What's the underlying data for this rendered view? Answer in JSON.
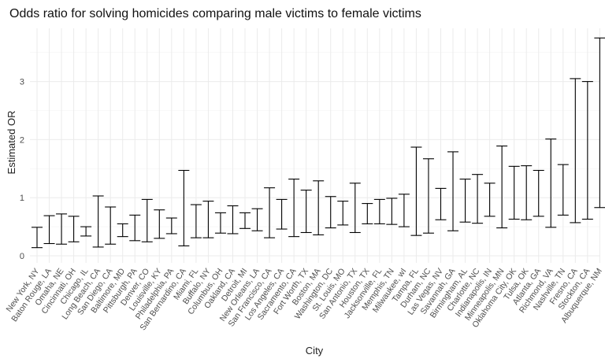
{
  "chart_data": {
    "type": "errorbar",
    "title": "Odds ratio for solving homicides comparing male victims to female victims",
    "xlabel": "City",
    "ylabel": "Estimated OR",
    "ylim": [
      -0.1,
      3.8
    ],
    "yticks": [
      0,
      1,
      2,
      3
    ],
    "grid": true,
    "series": [
      {
        "values": [
          {
            "city": "New York, NY",
            "lower": 0.14,
            "upper": 0.49
          },
          {
            "city": "Baton Rouge, LA",
            "lower": 0.21,
            "upper": 0.69
          },
          {
            "city": "Omaha, NE",
            "lower": 0.2,
            "upper": 0.72
          },
          {
            "city": "Cincinnati, OH",
            "lower": 0.24,
            "upper": 0.68
          },
          {
            "city": "Chicago, IL",
            "lower": 0.34,
            "upper": 0.5
          },
          {
            "city": "Long Beach, CA",
            "lower": 0.15,
            "upper": 1.03
          },
          {
            "city": "San Diego, CA",
            "lower": 0.2,
            "upper": 0.84
          },
          {
            "city": "Baltimore, MD",
            "lower": 0.33,
            "upper": 0.55
          },
          {
            "city": "Pittsburgh, PA",
            "lower": 0.26,
            "upper": 0.7
          },
          {
            "city": "Denver, CO",
            "lower": 0.24,
            "upper": 0.97
          },
          {
            "city": "Louisville, KY",
            "lower": 0.3,
            "upper": 0.79
          },
          {
            "city": "Philadelphia, PA",
            "lower": 0.38,
            "upper": 0.65
          },
          {
            "city": "San Bernardino, CA",
            "lower": 0.17,
            "upper": 1.47
          },
          {
            "city": "Miami, FL",
            "lower": 0.31,
            "upper": 0.88
          },
          {
            "city": "Buffalo, NY",
            "lower": 0.31,
            "upper": 0.94
          },
          {
            "city": "Columbus, OH",
            "lower": 0.39,
            "upper": 0.74
          },
          {
            "city": "Oakland, CA",
            "lower": 0.38,
            "upper": 0.86
          },
          {
            "city": "Detroit, MI",
            "lower": 0.47,
            "upper": 0.74
          },
          {
            "city": "New Orleans, LA",
            "lower": 0.43,
            "upper": 0.81
          },
          {
            "city": "San Francisco, CA",
            "lower": 0.31,
            "upper": 1.17
          },
          {
            "city": "Los Angeles, CA",
            "lower": 0.46,
            "upper": 0.97
          },
          {
            "city": "Sacramento, CA",
            "lower": 0.33,
            "upper": 1.32
          },
          {
            "city": "Fort Worth, TX",
            "lower": 0.4,
            "upper": 1.13
          },
          {
            "city": "Boston, MA",
            "lower": 0.36,
            "upper": 1.29
          },
          {
            "city": "Washington, DC",
            "lower": 0.48,
            "upper": 1.02
          },
          {
            "city": "St. Louis, MO",
            "lower": 0.53,
            "upper": 0.94
          },
          {
            "city": "San Antonio, TX",
            "lower": 0.4,
            "upper": 1.25
          },
          {
            "city": "Houston, TX",
            "lower": 0.55,
            "upper": 0.9
          },
          {
            "city": "Jacksonville, FL",
            "lower": 0.55,
            "upper": 0.97
          },
          {
            "city": "Memphis, TN",
            "lower": 0.54,
            "upper": 0.99
          },
          {
            "city": "Milwaukee, wI",
            "lower": 0.5,
            "upper": 1.06
          },
          {
            "city": "Tampa, FL",
            "lower": 0.35,
            "upper": 1.87
          },
          {
            "city": "Durham, NC",
            "lower": 0.39,
            "upper": 1.67
          },
          {
            "city": "Las Vegas, NV",
            "lower": 0.62,
            "upper": 1.16
          },
          {
            "city": "Savannah, GA",
            "lower": 0.43,
            "upper": 1.79
          },
          {
            "city": "Birmingham, AL",
            "lower": 0.58,
            "upper": 1.32
          },
          {
            "city": "Charlotte, NC",
            "lower": 0.56,
            "upper": 1.4
          },
          {
            "city": "Indianapolis, IN",
            "lower": 0.68,
            "upper": 1.25
          },
          {
            "city": "Minneapolis, MN",
            "lower": 0.48,
            "upper": 1.89
          },
          {
            "city": "Oklahoma City, OK",
            "lower": 0.63,
            "upper": 1.54
          },
          {
            "city": "Tulsa, OK",
            "lower": 0.62,
            "upper": 1.55
          },
          {
            "city": "Atlanta, GA",
            "lower": 0.68,
            "upper": 1.47
          },
          {
            "city": "Richmond, VA",
            "lower": 0.49,
            "upper": 2.01
          },
          {
            "city": "Nashville, TN",
            "lower": 0.7,
            "upper": 1.57
          },
          {
            "city": "Fresno, CA",
            "lower": 0.57,
            "upper": 3.05
          },
          {
            "city": "Stockton, CA",
            "lower": 0.63,
            "upper": 3.0
          },
          {
            "city": "Albuquerque, NM",
            "lower": 0.83,
            "upper": 3.75
          }
        ]
      }
    ]
  }
}
